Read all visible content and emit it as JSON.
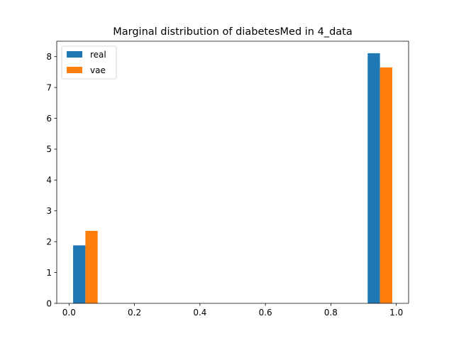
{
  "chart_data": {
    "type": "bar",
    "title": "Marginal distribution of diabetesMed in 4_data",
    "xlabel": "",
    "ylabel": "",
    "xlim": [
      -0.0375,
      1.0375
    ],
    "ylim": [
      0,
      8.5
    ],
    "xticks": [
      0.0,
      0.2,
      0.4,
      0.6,
      0.8,
      1.0
    ],
    "xtick_labels": [
      "0.0",
      "0.2",
      "0.4",
      "0.6",
      "0.8",
      "1.0"
    ],
    "yticks": [
      0,
      1,
      2,
      3,
      4,
      5,
      6,
      7,
      8
    ],
    "ytick_labels": [
      "0",
      "1",
      "2",
      "3",
      "4",
      "5",
      "6",
      "7",
      "8"
    ],
    "bin_width": 0.0375,
    "series": [
      {
        "name": "real",
        "color": "#1f77b4",
        "bins": [
          {
            "x_start": 0.0125,
            "density": 1.88
          },
          {
            "x_start": 0.9125,
            "density": 8.11
          }
        ]
      },
      {
        "name": "vae",
        "color": "#ff7f0e",
        "bins": [
          {
            "x_start": 0.05,
            "density": 2.35
          },
          {
            "x_start": 0.95,
            "density": 7.65
          }
        ]
      }
    ],
    "legend": {
      "position": "top-left",
      "entries": [
        "real",
        "vae"
      ]
    },
    "grid": false
  }
}
